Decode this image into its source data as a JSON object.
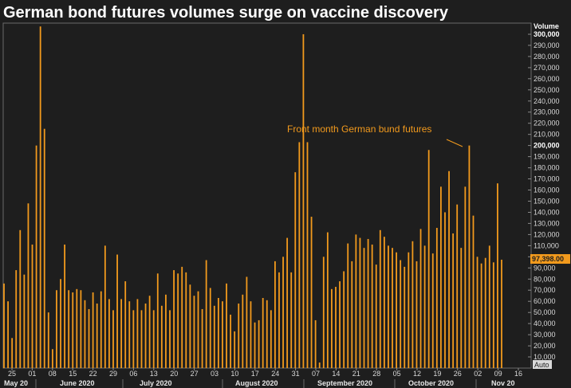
{
  "title": "German bond futures volumes surge on vaccine discovery",
  "colors": {
    "background": "#1e1e1e",
    "bar": "#f29a1d",
    "text": "#d9d9d9",
    "frame": "#6a6a6a"
  },
  "chart_data": {
    "type": "bar",
    "title": "German bond futures volumes surge on vaccine discovery",
    "ylabel": "Volume",
    "ylim": [
      0,
      310000
    ],
    "y_ticks": [
      10000,
      20000,
      30000,
      40000,
      50000,
      60000,
      70000,
      80000,
      90000,
      100000,
      110000,
      120000,
      130000,
      140000,
      150000,
      160000,
      170000,
      180000,
      190000,
      200000,
      210000,
      220000,
      230000,
      240000,
      250000,
      260000,
      270000,
      280000,
      290000,
      300000
    ],
    "y_tick_labels": [
      "10,000",
      "20,000",
      "30,000",
      "40,000",
      "50,000",
      "60,000",
      "70,000",
      "80,000",
      "90,000",
      "100,000",
      "110,000",
      "120,000",
      "130,000",
      "140,000",
      "150,000",
      "160,000",
      "170,000",
      "180,000",
      "190,000",
      "200,000",
      "210,000",
      "220,000",
      "230,000",
      "240,000",
      "250,000",
      "260,000",
      "270,000",
      "280,000",
      "290,000",
      "300,000"
    ],
    "bold_ticks": [
      "200,000",
      "300,000"
    ],
    "x_day_labels": [
      "25",
      "01",
      "08",
      "15",
      "22",
      "29",
      "06",
      "13",
      "20",
      "27",
      "03",
      "10",
      "17",
      "24",
      "31",
      "07",
      "14",
      "21",
      "28",
      "05",
      "12",
      "19",
      "26",
      "02",
      "09",
      "16"
    ],
    "x_month_labels": [
      "May 20",
      "June 2020",
      "July 2020",
      "August 2020",
      "September 2020",
      "October 2020",
      "Nov 20"
    ],
    "series": [
      {
        "values": [
          76000,
          60000,
          27000,
          88000,
          124000,
          84000,
          148000,
          111000,
          200000,
          307000,
          215000,
          50000,
          17000,
          70000,
          80000,
          111000,
          70000,
          68000,
          71000,
          70000,
          61000,
          53000,
          68000,
          58000,
          69000,
          110000,
          62000,
          52000,
          102000,
          62000,
          78000,
          60000,
          52000,
          62000,
          52000,
          58000,
          65000,
          52000,
          85000,
          56000,
          66000,
          52000,
          88000,
          85000,
          91000,
          86000,
          75000,
          65000,
          69000,
          53000,
          97000,
          72000,
          56000,
          63000,
          60000,
          76000,
          48000,
          33000,
          58000,
          66000,
          82000,
          60000,
          41000,
          43000,
          63000,
          61000,
          52000,
          96000,
          86000,
          100000,
          117000,
          86000,
          176000,
          203000,
          300000,
          203000,
          136000,
          43000,
          5000,
          100000,
          122000,
          71000,
          73000,
          78000,
          87000,
          112000,
          96000,
          120000,
          117000,
          108000,
          116000,
          111000,
          93000,
          124000,
          118000,
          110000,
          108000,
          104000,
          97000,
          91000,
          104000,
          114000,
          96000,
          125000,
          110000,
          196000,
          103000,
          126000,
          163000,
          140000,
          177000,
          121000,
          147000,
          108000,
          163000,
          200000,
          137000,
          100000,
          94000,
          99000,
          110000,
          95000,
          166000,
          97398
        ]
      }
    ],
    "last_value": 97398,
    "last_value_label": "97,398.00",
    "annotation": "Front month German bund futures",
    "scale_mode": "Auto"
  },
  "labels": {
    "ylabel": "Volume",
    "annotation": "Front month German bund futures",
    "last_value": "97,398.00",
    "auto": "Auto"
  }
}
